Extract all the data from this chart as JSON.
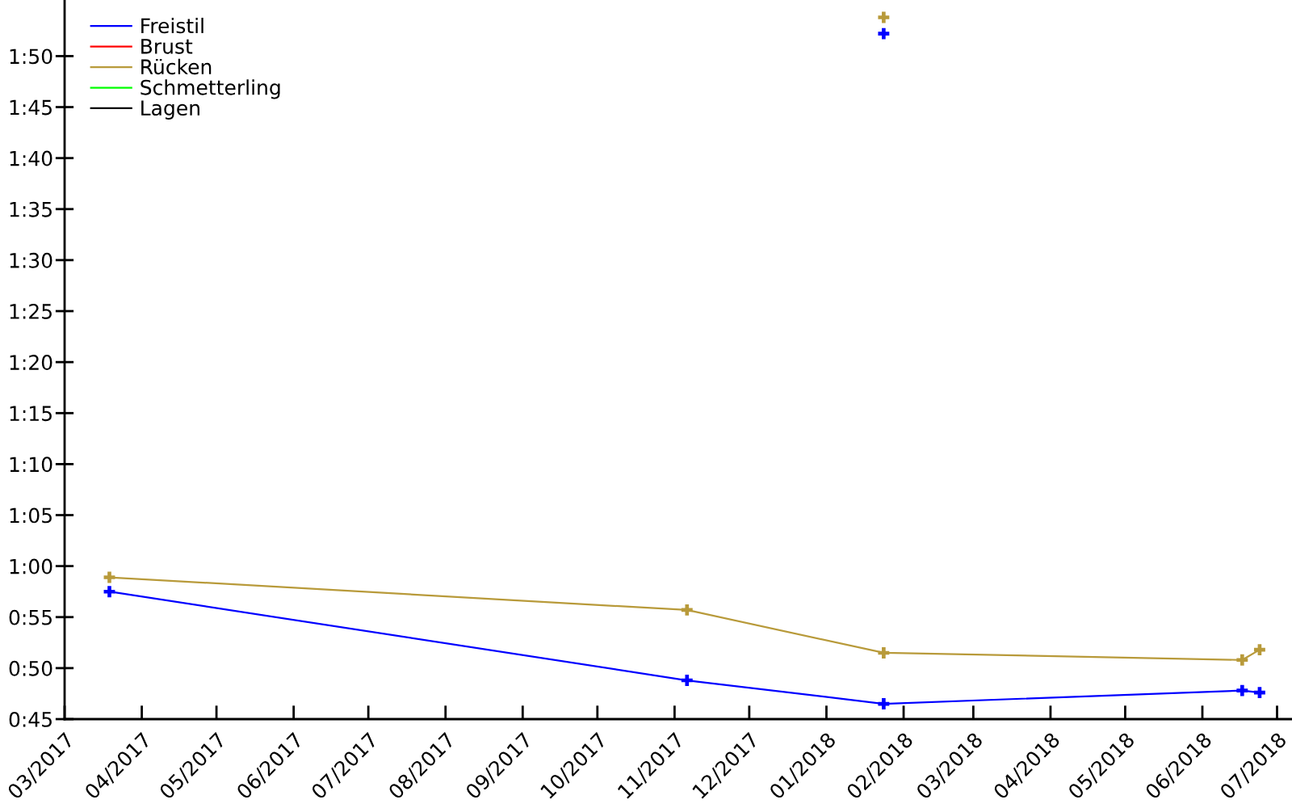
{
  "chart_data": {
    "type": "line",
    "x": [
      "2017-03-19",
      "2017-11-06",
      "2018-01-24",
      "2018-06-17",
      "2018-06-24"
    ],
    "series": [
      {
        "name": "Freistil",
        "color": "#0000ff",
        "values": [
          57.5,
          48.8,
          46.5,
          47.8,
          47.6
        ]
      },
      {
        "name": "Brust",
        "color": "#ff0000",
        "values": [
          null,
          null,
          null,
          null,
          null
        ]
      },
      {
        "name": "Rücken",
        "color": "#b89a3a",
        "values": [
          58.9,
          55.7,
          51.5,
          50.8,
          51.8
        ]
      },
      {
        "name": "Schmetterling",
        "color": "#00ff00",
        "values": [
          null,
          null,
          null,
          null,
          null
        ]
      },
      {
        "name": "Lagen",
        "color": "#000000",
        "values": [
          null,
          null,
          null,
          null,
          null
        ]
      },
      {
        "type": "scatter",
        "color": "#0000ff",
        "x": [
          "2018-01-24"
        ],
        "values": [
          112.2
        ]
      },
      {
        "type": "scatter",
        "color": "#b89a3a",
        "x": [
          "2018-01-24"
        ],
        "values": [
          113.8
        ]
      }
    ],
    "xlim": [
      "2017-03-01",
      "2018-07-07"
    ],
    "xticks": [
      {
        "value": "2017-03",
        "label": "03/2017"
      },
      {
        "value": "2017-04",
        "label": "04/2017"
      },
      {
        "value": "2017-05",
        "label": "05/2017"
      },
      {
        "value": "2017-06",
        "label": "06/2017"
      },
      {
        "value": "2017-07",
        "label": "07/2017"
      },
      {
        "value": "2017-08",
        "label": "08/2017"
      },
      {
        "value": "2017-09",
        "label": "09/2017"
      },
      {
        "value": "2017-10",
        "label": "10/2017"
      },
      {
        "value": "2017-11",
        "label": "11/2017"
      },
      {
        "value": "2017-12",
        "label": "12/2017"
      },
      {
        "value": "2018-01",
        "label": "01/2018"
      },
      {
        "value": "2018-02",
        "label": "02/2018"
      },
      {
        "value": "2018-03",
        "label": "03/2018"
      },
      {
        "value": "2018-04",
        "label": "04/2018"
      },
      {
        "value": "2018-05",
        "label": "05/2018"
      },
      {
        "value": "2018-06",
        "label": "06/2018"
      },
      {
        "value": "2018-07",
        "label": "07/2018"
      }
    ],
    "ylim": [
      45,
      115.5
    ],
    "yticks": [
      {
        "value": 45,
        "label": "0:45"
      },
      {
        "value": 50,
        "label": "0:50"
      },
      {
        "value": 55,
        "label": "0:55"
      },
      {
        "value": 60,
        "label": "1:00"
      },
      {
        "value": 65,
        "label": "1:05"
      },
      {
        "value": 70,
        "label": "1:10"
      },
      {
        "value": 75,
        "label": "1:15"
      },
      {
        "value": 80,
        "label": "1:20"
      },
      {
        "value": 85,
        "label": "1:25"
      },
      {
        "value": 90,
        "label": "1:30"
      },
      {
        "value": 95,
        "label": "1:35"
      },
      {
        "value": 100,
        "label": "1:40"
      },
      {
        "value": 105,
        "label": "1:45"
      },
      {
        "value": 110,
        "label": "1:50"
      }
    ],
    "marker": "cross",
    "grid": false,
    "legend": "top left"
  }
}
